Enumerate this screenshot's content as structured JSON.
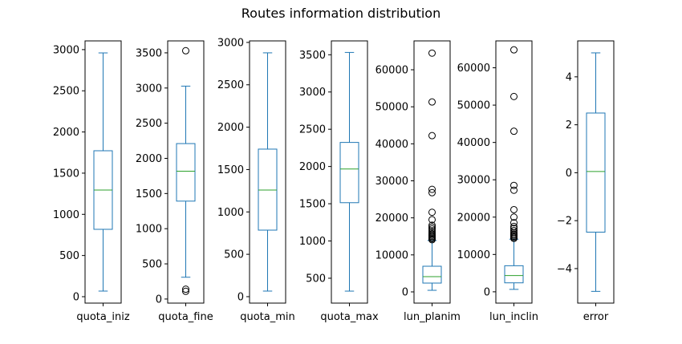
{
  "chart_data": {
    "type": "box",
    "title": "Routes information distribution",
    "colors": {
      "box": "#1f77b4",
      "median": "#2ca02c",
      "outlier": "#000000"
    },
    "panels": [
      {
        "label": "quota_iniz",
        "ylim": [
          -78,
          3106
        ],
        "ticks": [
          0,
          500,
          1000,
          1500,
          2000,
          2500,
          3000
        ],
        "whislo": 68,
        "q1": 818,
        "med": 1295,
        "q3": 1772,
        "whishi": 2960,
        "fliers": []
      },
      {
        "label": "quota_fine",
        "ylim": [
          -58,
          3670
        ],
        "ticks": [
          0,
          500,
          1000,
          1500,
          2000,
          2500,
          3000,
          3500
        ],
        "whislo": 310,
        "q1": 1392,
        "med": 1818,
        "q3": 2210,
        "whishi": 3027,
        "fliers": [
          110,
          140,
          3530
        ]
      },
      {
        "label": "quota_min",
        "ylim": [
          -76,
          3018
        ],
        "ticks": [
          0,
          500,
          1000,
          1500,
          2000,
          2500,
          3000
        ],
        "whislo": 66,
        "q1": 785,
        "med": 1258,
        "q3": 1741,
        "whishi": 2877,
        "fliers": []
      },
      {
        "label": "quota_max",
        "ylim": [
          166,
          3686
        ],
        "ticks": [
          500,
          1000,
          1500,
          2000,
          2500,
          3000,
          3500
        ],
        "whislo": 327,
        "q1": 1514,
        "med": 1967,
        "q3": 2323,
        "whishi": 3531,
        "fliers": []
      },
      {
        "label": "lun_planim",
        "ylim": [
          -3030,
          67800
        ],
        "ticks": [
          0,
          10000,
          20000,
          30000,
          40000,
          50000,
          60000
        ],
        "whislo": 430,
        "q1": 2380,
        "med": 4115,
        "q3": 6930,
        "whishi": 13900,
        "fliers": [
          14100,
          14400,
          14700,
          15000,
          15300,
          15600,
          16000,
          16500,
          17000,
          17500,
          18000,
          19500,
          21500,
          26800,
          27700,
          42200,
          51300,
          64500
        ]
      },
      {
        "label": "lun_inclin",
        "ylim": [
          -3030,
          67200
        ],
        "ticks": [
          0,
          10000,
          20000,
          30000,
          40000,
          50000,
          60000
        ],
        "whislo": 650,
        "q1": 2400,
        "med": 4360,
        "q3": 6980,
        "whishi": 14100,
        "fliers": [
          14300,
          14600,
          14900,
          15200,
          15500,
          15900,
          16400,
          17000,
          17500,
          18500,
          20000,
          22000,
          27200,
          28500,
          43000,
          52300,
          64800
        ]
      },
      {
        "label": "error",
        "ylim": [
          -5.44,
          5.5
        ],
        "ticks": [
          -4,
          -2,
          0,
          2,
          4
        ],
        "whislo": -4.95,
        "q1": -2.48,
        "med": 0.05,
        "q3": 2.49,
        "whishi": 5.0,
        "fliers": []
      }
    ]
  }
}
